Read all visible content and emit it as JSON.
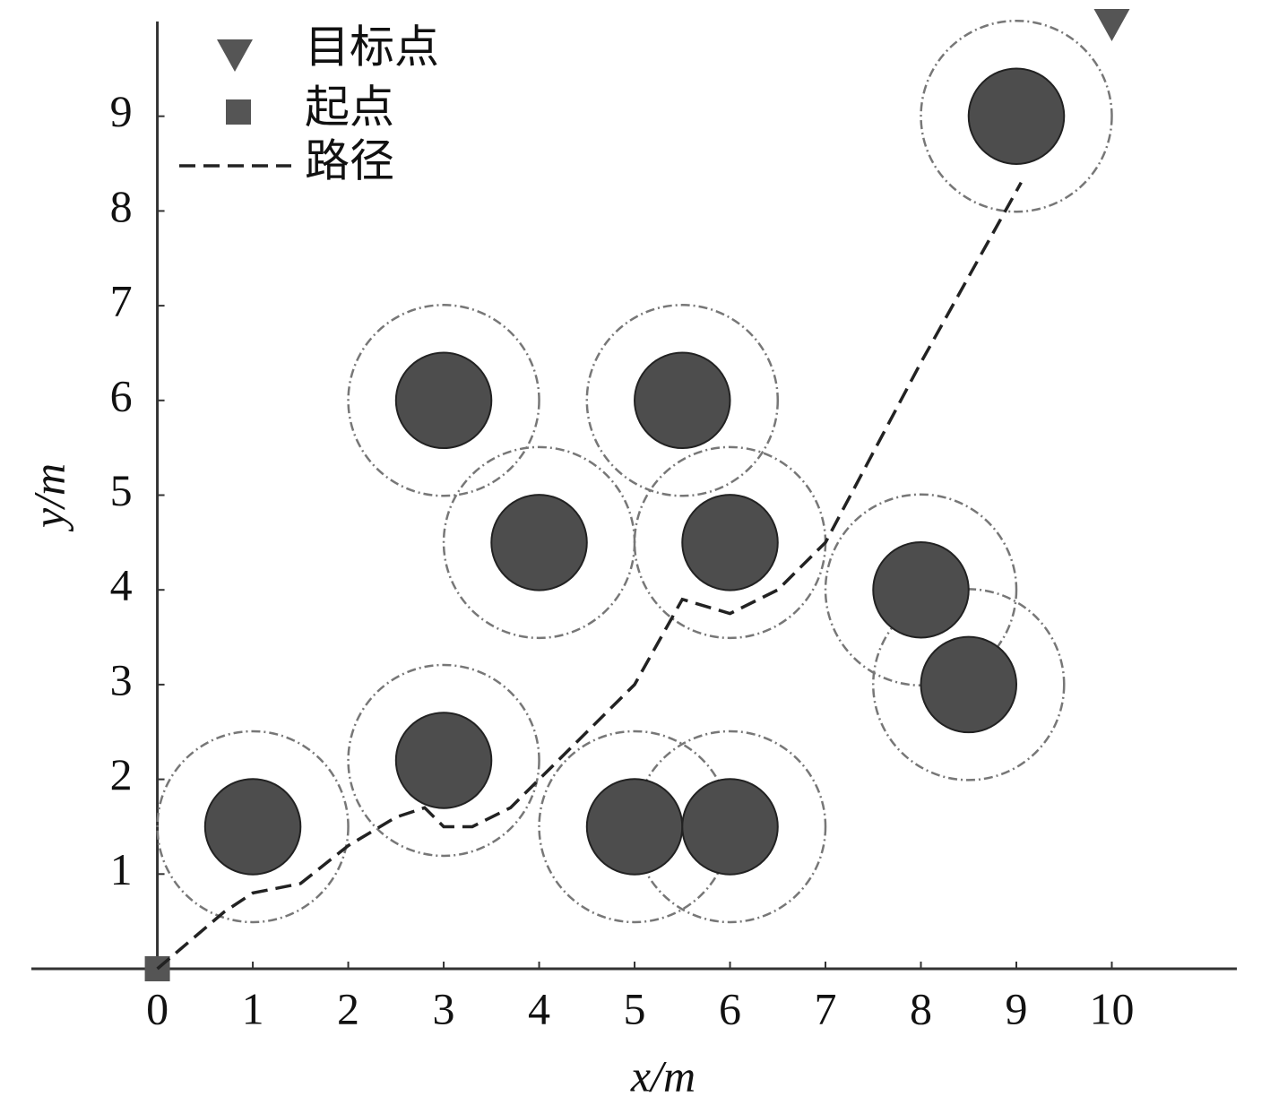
{
  "chart_data": {
    "type": "scatter",
    "xlabel": "x/m",
    "ylabel": "y/m",
    "xlim": [
      -1.32,
      11.31
    ],
    "ylim": [
      0,
      10
    ],
    "xticks": [
      0,
      1,
      2,
      3,
      4,
      5,
      6,
      7,
      8,
      9,
      10
    ],
    "yticks": [
      1,
      2,
      3,
      4,
      5,
      6,
      7,
      8,
      9
    ],
    "series": [
      {
        "name": "目标点",
        "marker": "triangle",
        "color": "#555555",
        "x": [
          10
        ],
        "y": [
          10
        ]
      },
      {
        "name": "起点",
        "marker": "square",
        "color": "#555555",
        "x": [
          0
        ],
        "y": [
          0
        ]
      },
      {
        "name": "路径",
        "marker": "dashed-line",
        "color": "#222222",
        "x": [
          0,
          0.7,
          1,
          1.5,
          2,
          2.5,
          2.8,
          3,
          3.3,
          3.7,
          4,
          5,
          5.5,
          6,
          6.5,
          7,
          8,
          9.05
        ],
        "y": [
          0,
          0.6,
          0.8,
          0.9,
          1.3,
          1.6,
          1.7,
          1.5,
          1.5,
          1.7,
          2,
          3,
          3.9,
          3.75,
          4,
          4.5,
          6.4,
          8.3
        ]
      }
    ],
    "obstacles": {
      "color": "#4d4d4d",
      "safety_color": "#777777",
      "x": [
        1,
        3,
        5,
        6,
        4,
        6,
        3,
        5.5,
        8,
        8.5,
        9
      ],
      "y": [
        1.5,
        2.2,
        1.5,
        1.5,
        4.5,
        4.5,
        6,
        6,
        4,
        3,
        9
      ],
      "r": [
        0.5,
        0.5,
        0.5,
        0.5,
        0.5,
        0.5,
        0.5,
        0.5,
        0.5,
        0.5,
        0.5
      ],
      "safety_r": [
        1,
        1,
        1,
        1,
        1,
        1,
        1,
        1,
        1,
        1,
        1
      ]
    }
  }
}
